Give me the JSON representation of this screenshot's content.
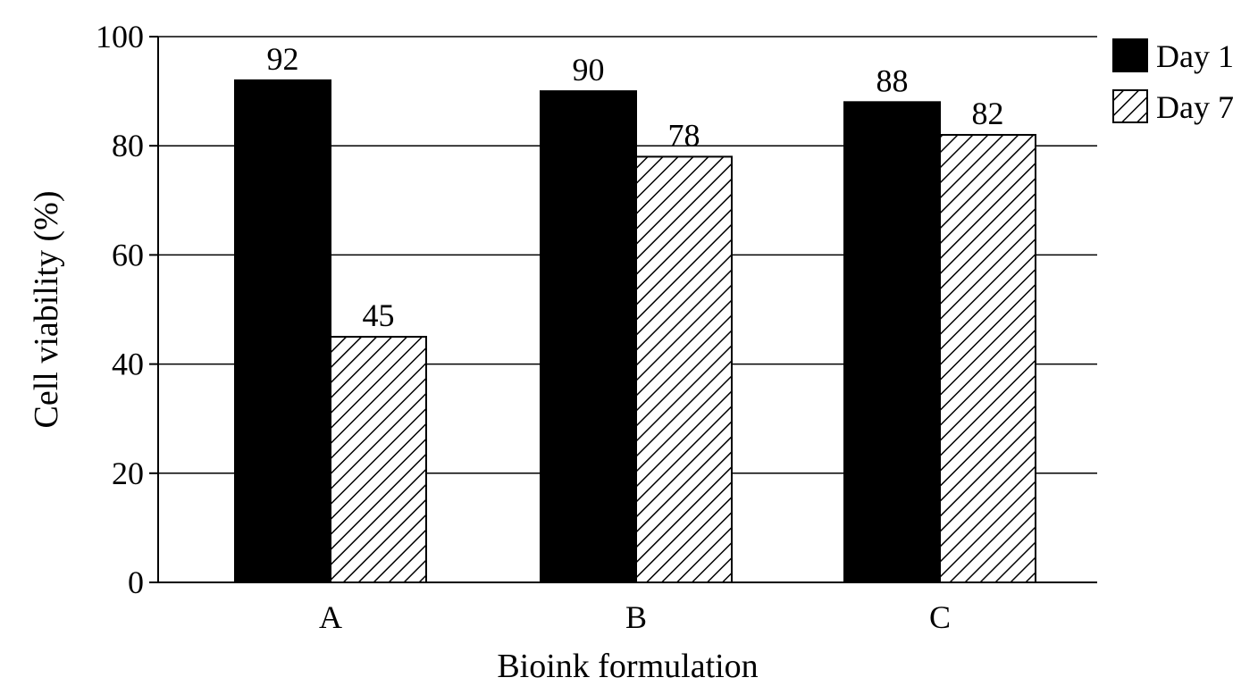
{
  "chart_data": {
    "type": "bar",
    "categories": [
      "A",
      "B",
      "C"
    ],
    "series": [
      {
        "name": "Day 1",
        "values": [
          92,
          90,
          88
        ],
        "fill": "solid"
      },
      {
        "name": "Day 7",
        "values": [
          45,
          78,
          82
        ],
        "fill": "hatched"
      }
    ],
    "data_labels": [
      [
        "92",
        "90",
        "88"
      ],
      [
        "45",
        "78",
        "82"
      ]
    ],
    "xlabel": "Bioink formulation",
    "ylabel": "Cell viability (%)",
    "ylim": [
      0,
      100
    ],
    "yticks": [
      0,
      20,
      40,
      60,
      80,
      100
    ],
    "grid": "horizontal",
    "legend_position": "top-right",
    "colors": {
      "bar_solid": "#000000",
      "bar_hatch_bg": "#ffffff",
      "grid": "#000000",
      "axis": "#000000"
    }
  }
}
